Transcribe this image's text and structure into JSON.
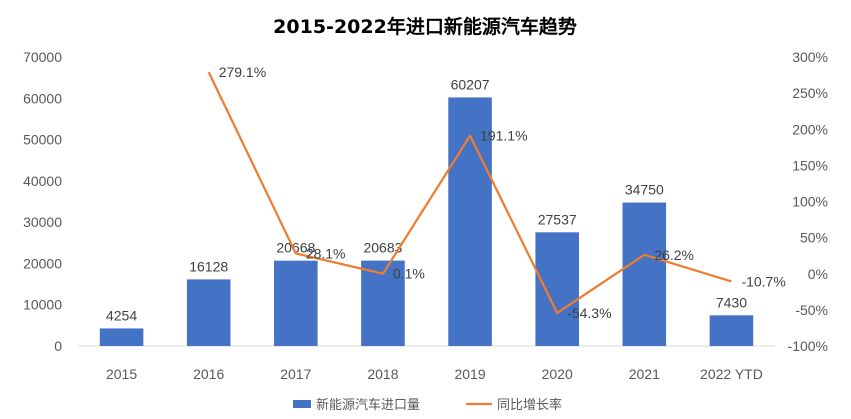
{
  "chart_data": {
    "type": "bar",
    "title": "2015-2022年进口新能源汽车趋势",
    "categories": [
      "2015",
      "2016",
      "2017",
      "2018",
      "2019",
      "2020",
      "2021",
      "2022 YTD"
    ],
    "series": [
      {
        "name": "新能源汽车进口量",
        "type": "bar",
        "axis": "left",
        "color": "#4472C4",
        "values": [
          4254,
          16128,
          20668,
          20683,
          60207,
          27537,
          34750,
          7430
        ],
        "labels": [
          "4254",
          "16128",
          "20668",
          "20683",
          "60207",
          "27537",
          "34750",
          "7430"
        ]
      },
      {
        "name": "同比增长率",
        "type": "line",
        "axis": "right",
        "color": "#ED7D31",
        "values": [
          null,
          279.1,
          28.1,
          0.1,
          191.1,
          -54.3,
          26.2,
          -10.7
        ],
        "labels": [
          "",
          "279.1%",
          "28.1%",
          "0.1%",
          "191.1%",
          "-54.3%",
          "26.2%",
          "-10.7%"
        ]
      }
    ],
    "y_left": {
      "range": [
        0,
        70000
      ],
      "ticks": [
        "0",
        "10000",
        "20000",
        "30000",
        "40000",
        "50000",
        "60000",
        "70000"
      ]
    },
    "y_right": {
      "range": [
        -100,
        300
      ],
      "ticks": [
        "-100%",
        "-50%",
        "0%",
        "50%",
        "100%",
        "150%",
        "200%",
        "250%",
        "300%"
      ]
    },
    "grid": false,
    "legend_position": "bottom"
  }
}
